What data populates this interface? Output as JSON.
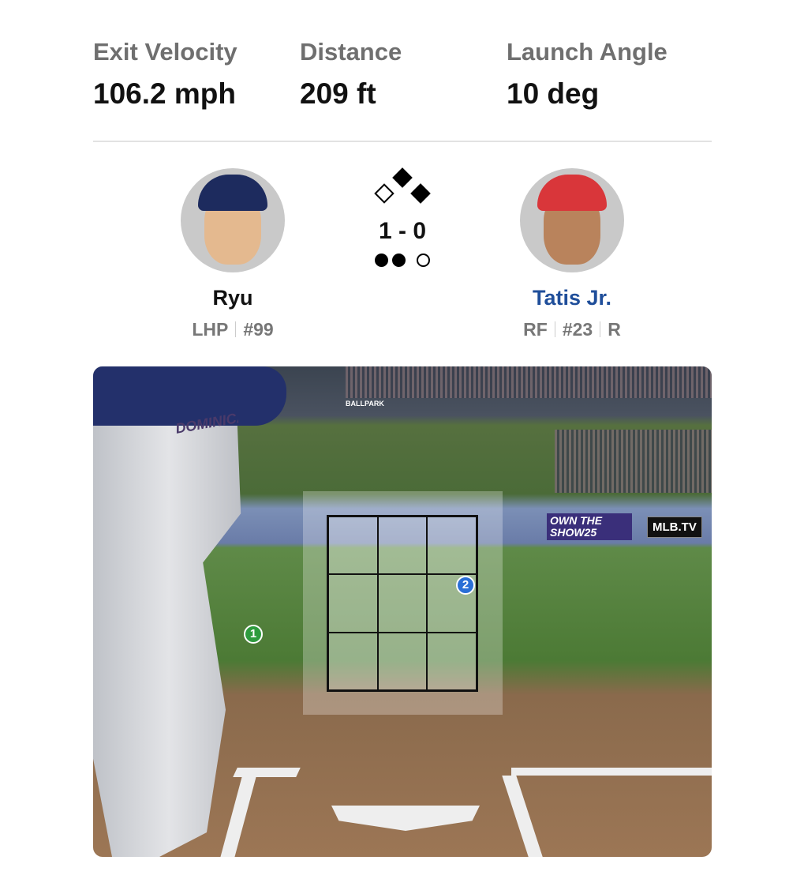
{
  "stats": [
    {
      "label": "Exit Velocity",
      "value": "106.2 mph"
    },
    {
      "label": "Distance",
      "value": "209 ft"
    },
    {
      "label": "Launch Angle",
      "value": "10 deg"
    }
  ],
  "pitcher": {
    "name": "Ryu",
    "position": "LHP",
    "number": "#99"
  },
  "batter": {
    "name": "Tatis Jr.",
    "position": "RF",
    "number": "#23",
    "bats": "R",
    "name_color": "#1f4e9a"
  },
  "situation": {
    "count": "1 - 0",
    "bases": {
      "first": true,
      "second": true,
      "third": false
    },
    "outs": 2
  },
  "pitches": [
    {
      "number": "1",
      "color": "#2e9b3e"
    },
    {
      "number": "2",
      "color": "#2a6fd6"
    }
  ],
  "scene_ads": {
    "show": "OWN THE SHOW25",
    "mlbtv": "MLB.TV",
    "ballpark": "BALLPARK",
    "jersey": "DOMINICANA"
  }
}
